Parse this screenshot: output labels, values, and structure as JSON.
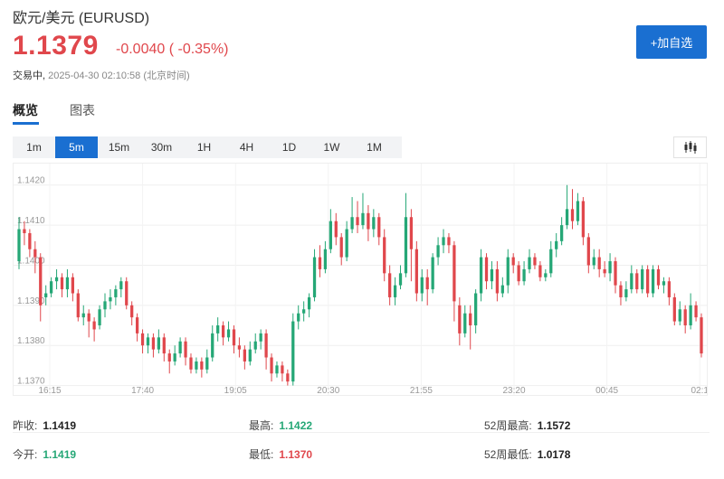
{
  "header": {
    "title": "欧元/美元  (EURUSD)",
    "price": "1.1379",
    "change": "-0.0040 ( -0.35%)",
    "status_state": "交易中,",
    "status_time": "2025-04-30 02:10:58  (北京时间)",
    "add_button": "+加自选"
  },
  "tabs": [
    {
      "label": "概览",
      "active": true
    },
    {
      "label": "图表",
      "active": false
    }
  ],
  "periods": [
    "1m",
    "5m",
    "15m",
    "30m",
    "1H",
    "4H",
    "1D",
    "1W",
    "1M"
  ],
  "active_period": "5m",
  "icons": {
    "chart_type": "candlestick-icon"
  },
  "colors": {
    "up": "#25a776",
    "down": "#e0474c",
    "accent": "#1a6fd1"
  },
  "stats": {
    "prev_close_label": "昨收:",
    "prev_close": "1.1419",
    "open_label": "今开:",
    "open": "1.1419",
    "high_label": "最高:",
    "high": "1.1422",
    "low_label": "最低:",
    "low": "1.1370",
    "w52_high_label": "52周最高:",
    "w52_high": "1.1572",
    "w52_low_label": "52周最低:",
    "w52_low": "1.0178"
  },
  "chart_data": {
    "type": "candlestick",
    "y_ticks": [
      "1.1420",
      "1.1410",
      "1.1400",
      "1.1390",
      "1.1380",
      "1.1370"
    ],
    "ylim": [
      1.1369,
      1.1424
    ],
    "x_ticks": [
      "16:15",
      "17:40",
      "19:05",
      "20:30",
      "21:55",
      "23:20",
      "00:45",
      "02:1"
    ],
    "candles": [
      [
        1.1401,
        1.1409,
        1.1412,
        1.1399
      ],
      [
        1.1409,
        1.1408,
        1.1411,
        1.1405
      ],
      [
        1.1408,
        1.1404,
        1.1409,
        1.1402
      ],
      [
        1.1404,
        1.1402,
        1.1406,
        1.1398
      ],
      [
        1.1402,
        1.139,
        1.1403,
        1.1386
      ],
      [
        1.1392,
        1.1393,
        1.1395,
        1.139
      ],
      [
        1.1393,
        1.1396,
        1.1397,
        1.1392
      ],
      [
        1.1396,
        1.1397,
        1.1399,
        1.1394
      ],
      [
        1.1397,
        1.1394,
        1.1398,
        1.1392
      ],
      [
        1.1394,
        1.1397,
        1.1399,
        1.1392
      ],
      [
        1.1397,
        1.1393,
        1.1398,
        1.1391
      ],
      [
        1.1393,
        1.1387,
        1.1394,
        1.1386
      ],
      [
        1.1387,
        1.1388,
        1.139,
        1.1385
      ],
      [
        1.1388,
        1.1386,
        1.1389,
        1.1382
      ],
      [
        1.1386,
        1.1384,
        1.1387,
        1.1381
      ],
      [
        1.1385,
        1.1389,
        1.139,
        1.1384
      ],
      [
        1.1389,
        1.1391,
        1.1393,
        1.1387
      ],
      [
        1.1391,
        1.1392,
        1.1394,
        1.1389
      ],
      [
        1.1392,
        1.1394,
        1.1395,
        1.139
      ],
      [
        1.1394,
        1.1396,
        1.1397,
        1.1392
      ],
      [
        1.1396,
        1.139,
        1.1397,
        1.1389
      ],
      [
        1.139,
        1.1387,
        1.1391,
        1.1385
      ],
      [
        1.1387,
        1.1383,
        1.1388,
        1.1381
      ],
      [
        1.1383,
        1.138,
        1.1384,
        1.1378
      ],
      [
        1.138,
        1.1382,
        1.1383,
        1.1378
      ],
      [
        1.1382,
        1.1379,
        1.1383,
        1.1377
      ],
      [
        1.1379,
        1.1382,
        1.1384,
        1.1378
      ],
      [
        1.1382,
        1.1378,
        1.1383,
        1.1376
      ],
      [
        1.1378,
        1.1376,
        1.1379,
        1.1373
      ],
      [
        1.1376,
        1.1378,
        1.138,
        1.1375
      ],
      [
        1.1378,
        1.1381,
        1.1382,
        1.1377
      ],
      [
        1.1381,
        1.1377,
        1.1382,
        1.1375
      ],
      [
        1.1377,
        1.1374,
        1.1378,
        1.1373
      ],
      [
        1.1374,
        1.1376,
        1.1377,
        1.1373
      ],
      [
        1.1376,
        1.1374,
        1.1377,
        1.1372
      ],
      [
        1.1374,
        1.1377,
        1.1379,
        1.1373
      ],
      [
        1.1377,
        1.1383,
        1.1385,
        1.1376
      ],
      [
        1.1383,
        1.1385,
        1.1387,
        1.1381
      ],
      [
        1.1385,
        1.1382,
        1.1386,
        1.138
      ],
      [
        1.1382,
        1.1384,
        1.1386,
        1.1381
      ],
      [
        1.1384,
        1.138,
        1.1385,
        1.1378
      ],
      [
        1.138,
        1.1379,
        1.1382,
        1.1377
      ],
      [
        1.1379,
        1.1376,
        1.138,
        1.1374
      ],
      [
        1.1376,
        1.1379,
        1.1381,
        1.1375
      ],
      [
        1.1379,
        1.1381,
        1.1383,
        1.1378
      ],
      [
        1.1381,
        1.1383,
        1.1384,
        1.1379
      ],
      [
        1.1383,
        1.1377,
        1.1384,
        1.1374
      ],
      [
        1.1377,
        1.1373,
        1.1378,
        1.1371
      ],
      [
        1.1373,
        1.1375,
        1.1376,
        1.1372
      ],
      [
        1.1375,
        1.1373,
        1.1376,
        1.1371
      ],
      [
        1.1373,
        1.1371,
        1.1374,
        1.137
      ],
      [
        1.1371,
        1.1386,
        1.1388,
        1.137
      ],
      [
        1.1386,
        1.1388,
        1.139,
        1.1384
      ],
      [
        1.1388,
        1.1389,
        1.1391,
        1.1386
      ],
      [
        1.1389,
        1.1392,
        1.1393,
        1.1387
      ],
      [
        1.1392,
        1.1402,
        1.1404,
        1.1391
      ],
      [
        1.1402,
        1.1399,
        1.1405,
        1.1397
      ],
      [
        1.1399,
        1.1404,
        1.1406,
        1.1398
      ],
      [
        1.1404,
        1.1411,
        1.1414,
        1.1403
      ],
      [
        1.1411,
        1.1407,
        1.1413,
        1.1405
      ],
      [
        1.1407,
        1.1402,
        1.1408,
        1.14
      ],
      [
        1.1402,
        1.1409,
        1.1411,
        1.1401
      ],
      [
        1.1409,
        1.1412,
        1.1417,
        1.1408
      ],
      [
        1.1412,
        1.141,
        1.1416,
        1.1408
      ],
      [
        1.141,
        1.1413,
        1.1418,
        1.1409
      ],
      [
        1.1413,
        1.1409,
        1.1415,
        1.1406
      ],
      [
        1.1409,
        1.1412,
        1.1414,
        1.1407
      ],
      [
        1.1412,
        1.1407,
        1.1413,
        1.1405
      ],
      [
        1.1407,
        1.1398,
        1.1409,
        1.1396
      ],
      [
        1.1398,
        1.1392,
        1.14,
        1.139
      ],
      [
        1.1392,
        1.1395,
        1.1397,
        1.139
      ],
      [
        1.1395,
        1.1398,
        1.14,
        1.1394
      ],
      [
        1.1398,
        1.1412,
        1.1418,
        1.1397
      ],
      [
        1.1412,
        1.1404,
        1.1414,
        1.1396
      ],
      [
        1.1404,
        1.1393,
        1.1406,
        1.1391
      ],
      [
        1.1393,
        1.1397,
        1.1399,
        1.1391
      ],
      [
        1.1397,
        1.1394,
        1.1399,
        1.139
      ],
      [
        1.1394,
        1.1402,
        1.1403,
        1.1393
      ],
      [
        1.1402,
        1.1405,
        1.1407,
        1.14
      ],
      [
        1.1405,
        1.1407,
        1.1409,
        1.1403
      ],
      [
        1.1407,
        1.1405,
        1.1408,
        1.1403
      ],
      [
        1.1405,
        1.1391,
        1.1406,
        1.1386
      ],
      [
        1.139,
        1.1383,
        1.1392,
        1.138
      ],
      [
        1.1383,
        1.1388,
        1.139,
        1.1382
      ],
      [
        1.1388,
        1.1385,
        1.139,
        1.1379
      ],
      [
        1.1385,
        1.1393,
        1.1394,
        1.1383
      ],
      [
        1.1393,
        1.1402,
        1.1404,
        1.1391
      ],
      [
        1.1402,
        1.1396,
        1.1403,
        1.1394
      ],
      [
        1.1396,
        1.1399,
        1.1401,
        1.1394
      ],
      [
        1.1399,
        1.1393,
        1.1401,
        1.1391
      ],
      [
        1.1393,
        1.1395,
        1.1397,
        1.1392
      ],
      [
        1.1395,
        1.1402,
        1.1404,
        1.1393
      ],
      [
        1.1402,
        1.14,
        1.1403,
        1.1398
      ],
      [
        1.14,
        1.1396,
        1.1401,
        1.1395
      ],
      [
        1.1396,
        1.1399,
        1.1401,
        1.1395
      ],
      [
        1.1399,
        1.1402,
        1.1404,
        1.1398
      ],
      [
        1.1402,
        1.14,
        1.1403,
        1.1399
      ],
      [
        1.14,
        1.1397,
        1.1401,
        1.1396
      ],
      [
        1.1397,
        1.1398,
        1.1399,
        1.1396
      ],
      [
        1.1398,
        1.1404,
        1.1406,
        1.1397
      ],
      [
        1.1404,
        1.1406,
        1.1408,
        1.1402
      ],
      [
        1.1406,
        1.141,
        1.1412,
        1.1405
      ],
      [
        1.141,
        1.1414,
        1.142,
        1.1409
      ],
      [
        1.1414,
        1.1411,
        1.1419,
        1.1409
      ],
      [
        1.1411,
        1.1416,
        1.1418,
        1.141
      ],
      [
        1.1416,
        1.1407,
        1.1417,
        1.1405
      ],
      [
        1.1407,
        1.14,
        1.1408,
        1.1398
      ],
      [
        1.14,
        1.1402,
        1.1404,
        1.1399
      ],
      [
        1.1402,
        1.1399,
        1.1404,
        1.1397
      ],
      [
        1.1399,
        1.1398,
        1.1401,
        1.1397
      ],
      [
        1.1398,
        1.1401,
        1.1403,
        1.1396
      ],
      [
        1.1401,
        1.1395,
        1.1402,
        1.1393
      ],
      [
        1.1395,
        1.1392,
        1.1396,
        1.139
      ],
      [
        1.1392,
        1.1394,
        1.1396,
        1.1391
      ],
      [
        1.1394,
        1.1398,
        1.14,
        1.1393
      ],
      [
        1.1398,
        1.1394,
        1.1399,
        1.1393
      ],
      [
        1.1394,
        1.1399,
        1.14,
        1.1393
      ],
      [
        1.1399,
        1.1393,
        1.14,
        1.1392
      ],
      [
        1.1393,
        1.1399,
        1.14,
        1.1392
      ],
      [
        1.1399,
        1.1395,
        1.14,
        1.1394
      ],
      [
        1.1395,
        1.1396,
        1.1397,
        1.1393
      ],
      [
        1.1396,
        1.1392,
        1.1397,
        1.139
      ],
      [
        1.1392,
        1.1386,
        1.1393,
        1.1385
      ],
      [
        1.1386,
        1.1389,
        1.1391,
        1.1385
      ],
      [
        1.1389,
        1.1385,
        1.139,
        1.1383
      ],
      [
        1.1385,
        1.139,
        1.1393,
        1.1384
      ],
      [
        1.139,
        1.1387,
        1.1391,
        1.1386
      ],
      [
        1.1387,
        1.1378,
        1.1388,
        1.1377
      ]
    ]
  }
}
